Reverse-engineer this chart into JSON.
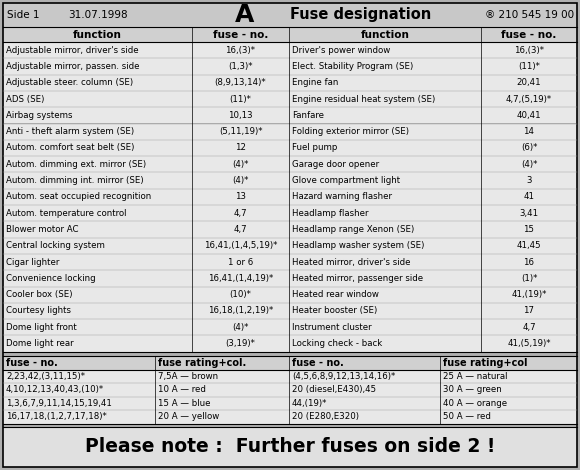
{
  "title_left": "Side 1",
  "title_date": "31.07.1998",
  "title_letter": "A",
  "title_center": "Fuse designation",
  "title_right": "® 210 545 19 00",
  "col_headers": [
    "function",
    "fuse - no.",
    "function",
    "fuse - no."
  ],
  "left_rows": [
    [
      "Adjustable mirror, driver's side",
      "16,(3)*"
    ],
    [
      "Adjustable mirror, passen. side",
      "(1,3)*"
    ],
    [
      "Adjustable steer. column (SE)",
      "(8,9,13,14)*"
    ],
    [
      "ADS (SE)",
      "(11)*"
    ],
    [
      "Airbag systems",
      "10,13"
    ],
    [
      "Anti - theft alarm system (SE)",
      "(5,11,19)*"
    ],
    [
      "Autom. comfort seat belt (SE)",
      "12"
    ],
    [
      "Autom. dimming ext. mirror (SE)",
      "(4)*"
    ],
    [
      "Autom. dimming int. mirror (SE)",
      "(4)*"
    ],
    [
      "Autom. seat occupied recognition",
      "13"
    ],
    [
      "Autom. temperature control",
      "4,7"
    ],
    [
      "Blower motor AC",
      "4,7"
    ],
    [
      "Central locking system",
      "16,41,(1,4,5,19)*"
    ],
    [
      "Cigar lighter",
      "1 or 6"
    ],
    [
      "Convenience locking",
      "16,41,(1,4,19)*"
    ],
    [
      "Cooler box (SE)",
      "(10)*"
    ],
    [
      "Courtesy lights",
      "16,18,(1,2,19)*"
    ],
    [
      "Dome light front",
      "(4)*"
    ],
    [
      "Dome light rear",
      "(3,19)*"
    ]
  ],
  "right_rows": [
    [
      "Driver's power window",
      "16,(3)*"
    ],
    [
      "Elect. Stability Program (SE)",
      "(11)*"
    ],
    [
      "Engine fan",
      "20,41"
    ],
    [
      "Engine residual heat system (SE)",
      "4,7,(5,19)*"
    ],
    [
      "Fanfare",
      "40,41"
    ],
    [
      "Folding exterior mirror (SE)",
      "14"
    ],
    [
      "Fuel pump",
      "(6)*"
    ],
    [
      "Garage door opener",
      "(4)*"
    ],
    [
      "Glove compartment light",
      "3"
    ],
    [
      "Hazard warning flasher",
      "41"
    ],
    [
      "Headlamp flasher",
      "3,41"
    ],
    [
      "Headlamp range Xenon (SE)",
      "15"
    ],
    [
      "Headlamp washer system (SE)",
      "41,45"
    ],
    [
      "Heated mirror, driver's side",
      "16"
    ],
    [
      "Heated mirror, passenger side",
      "(1)*"
    ],
    [
      "Heated rear window",
      "41,(19)*"
    ],
    [
      "Heater booster (SE)",
      "17"
    ],
    [
      "Instrument cluster",
      "4,7"
    ],
    [
      "Locking check - back",
      "41,(5,19)*"
    ]
  ],
  "bottom_left_header": [
    "fuse - no.",
    "fuse rating+col."
  ],
  "bottom_right_header": [
    "fuse - no.",
    "fuse rating+col"
  ],
  "bottom_left_rows": [
    [
      "2,23,42,(3,11,15)*",
      "7,5A — brown"
    ],
    [
      "4,10,12,13,40,43,(10)*",
      "10 A — red"
    ],
    [
      "1,3,6,7,9,11,14,15,19,41",
      "15 A — blue"
    ],
    [
      "16,17,18,(1,2,7,17,18)*",
      "20 A — yellow"
    ]
  ],
  "bottom_right_rows": [
    [
      "(4,5,6,8,9,12,13,14,16)*",
      "25 A — natural"
    ],
    [
      "20 (diesel,E430),45",
      "30 A — green"
    ],
    [
      "44,(19)*",
      "40 A — orange"
    ],
    [
      "20 (E280,E320)",
      "50 A — red"
    ]
  ],
  "footer": "Please note :  Further fuses on side 2 !",
  "bg_color": "#b0b0b0",
  "header_bg": "#c8c8c8",
  "col_header_bg": "#d0d0d0",
  "table_bg": "#e8e8e8",
  "footer_bg": "#e0e0e0",
  "white": "#ffffff"
}
